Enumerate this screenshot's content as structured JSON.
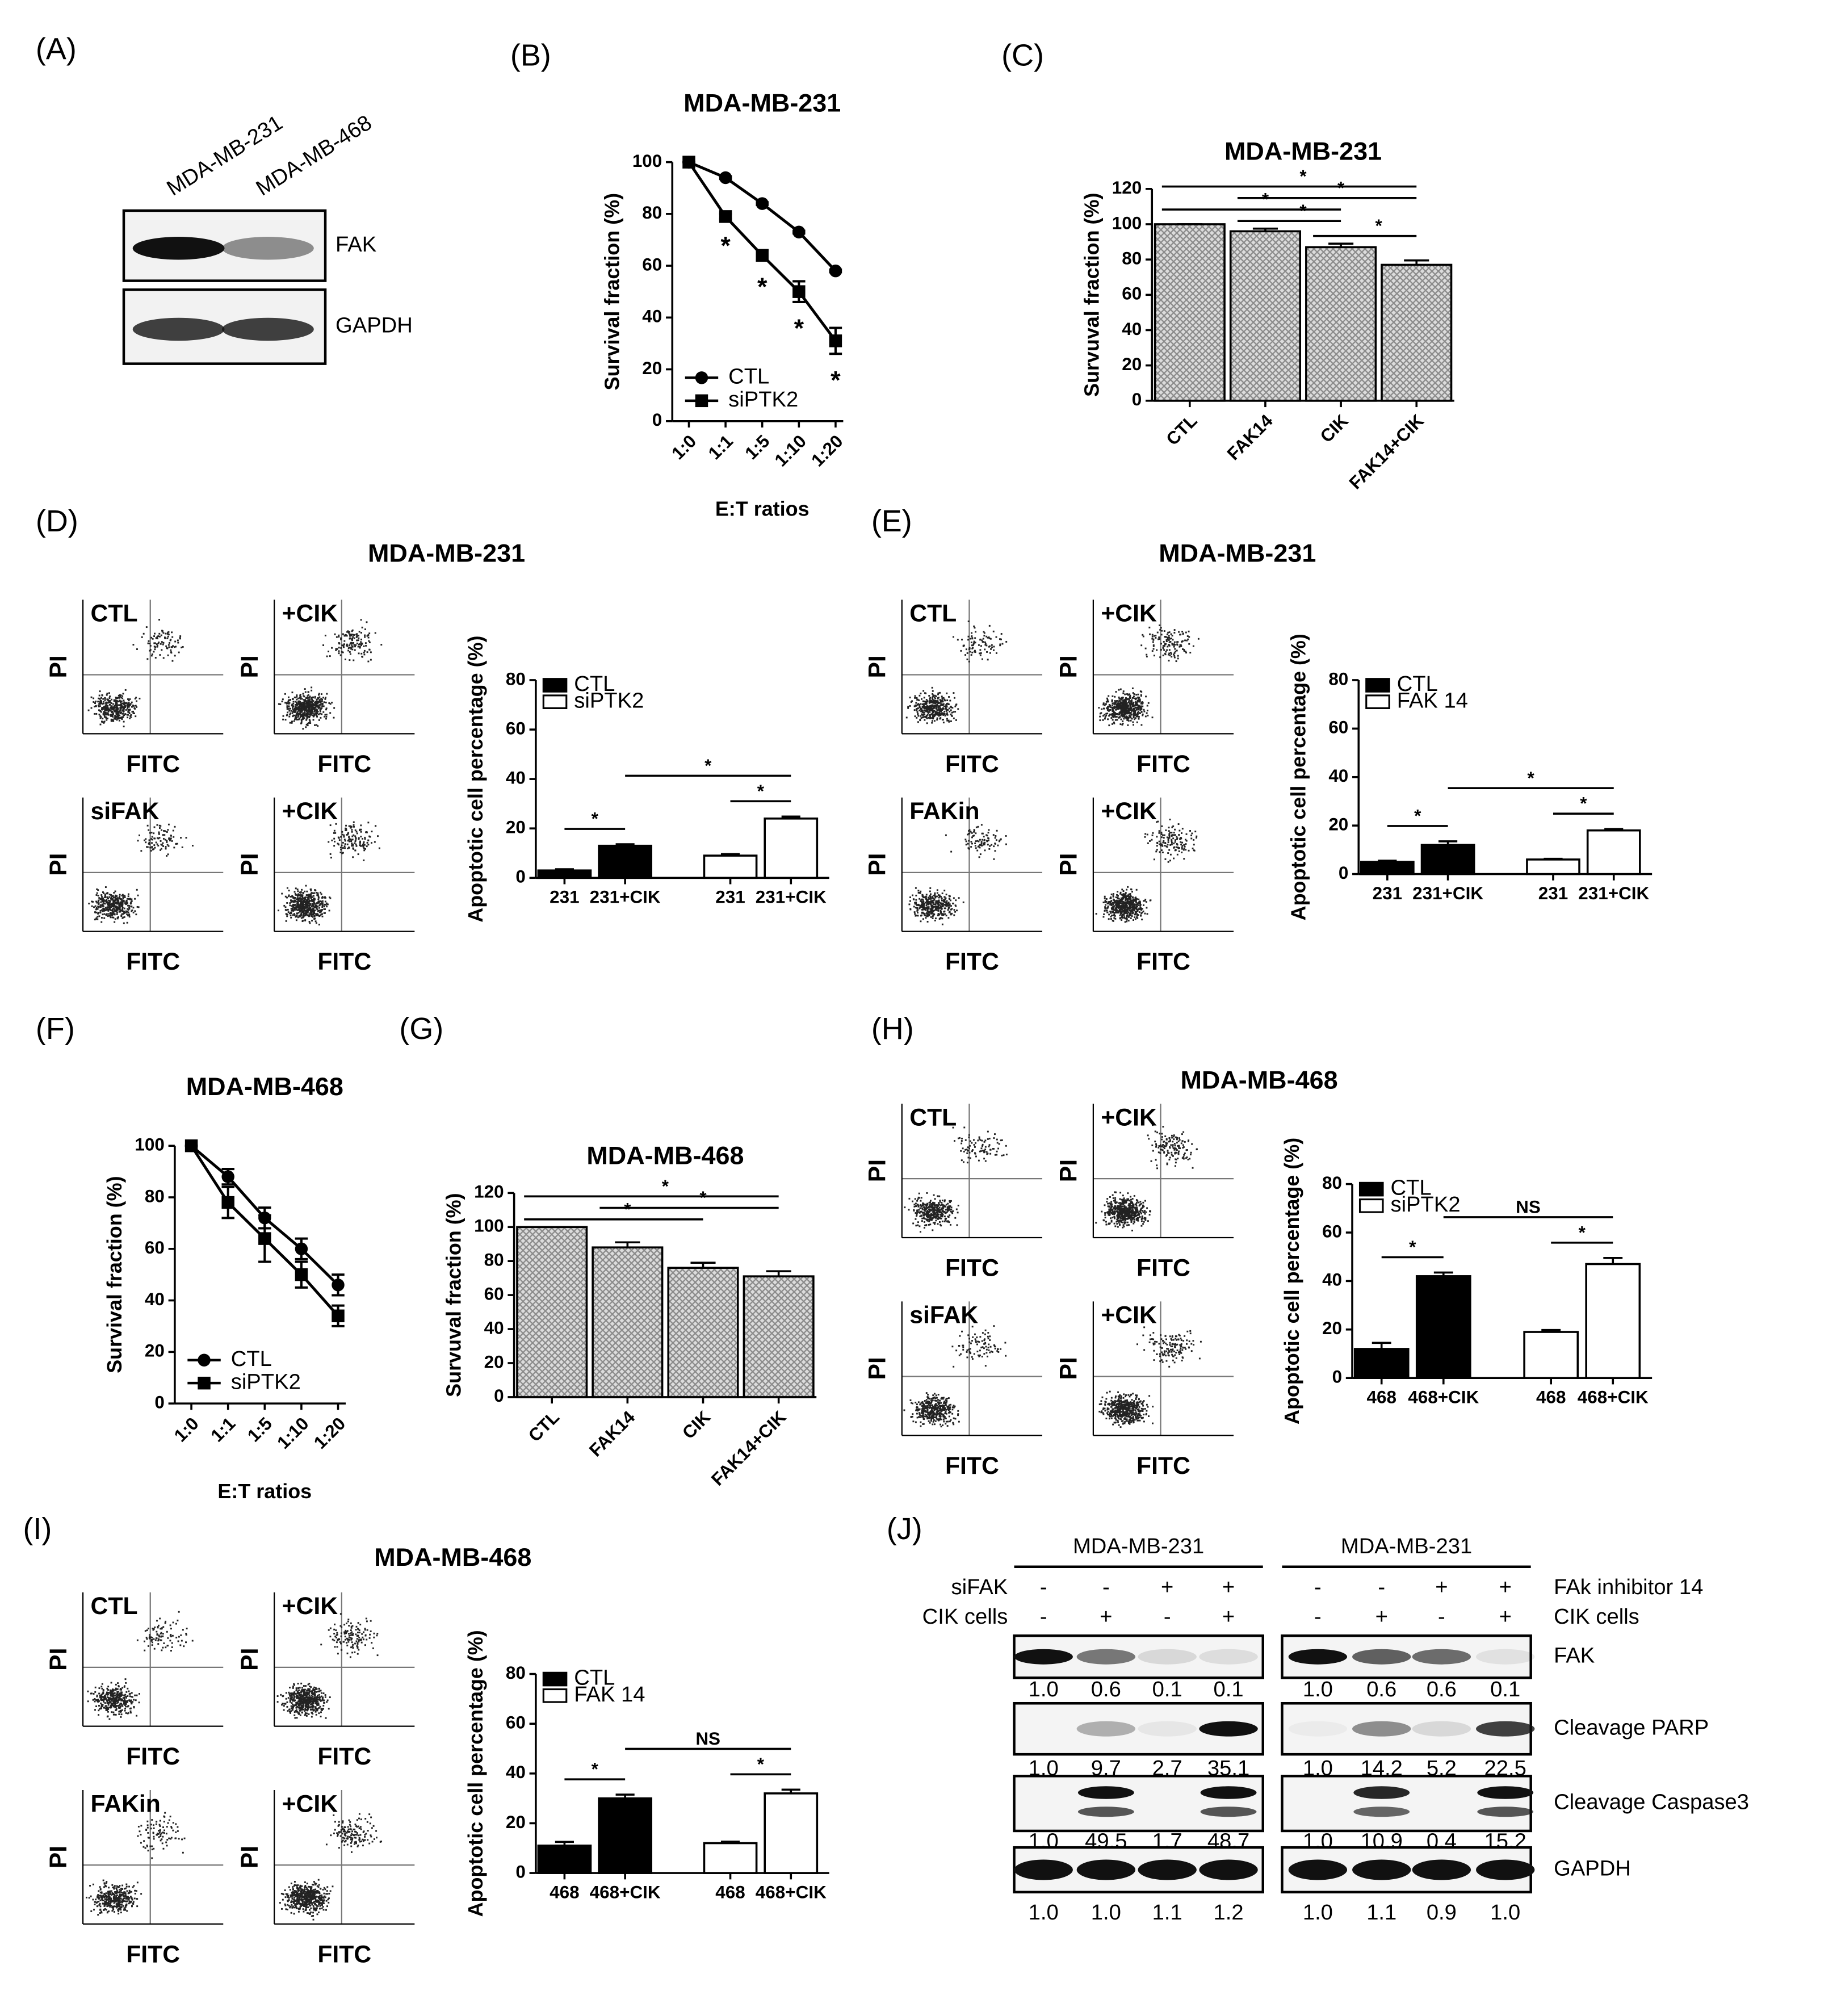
{
  "panel_labels": [
    "(A)",
    "(B)",
    "(C)",
    "(D)",
    "(E)",
    "(F)",
    "(G)",
    "(H)",
    "(I)",
    "(J)"
  ],
  "blot_a": {
    "lanes": [
      "MDA-MB-231",
      "MDA-MB-468"
    ],
    "bands": [
      "FAK",
      "GAPDH"
    ]
  },
  "chart_data": [
    {
      "type": "line",
      "title": "MDA-MB-231",
      "x_label": "E:T ratios",
      "y_label": "Survival fraction (%)",
      "categories": [
        "1:0",
        "1:1",
        "1:5",
        "1:10",
        "1:20"
      ],
      "series": [
        {
          "name": "CTL",
          "color": "#000000",
          "marker": "circle",
          "values": [
            100,
            94,
            84,
            73,
            58
          ],
          "errors": [
            0,
            0.5,
            0.5,
            0.5,
            0.5
          ]
        },
        {
          "name": "siPTK2",
          "color": "#000000",
          "marker": "square",
          "values": [
            100,
            79,
            64,
            50,
            31
          ],
          "errors": [
            0,
            1,
            2,
            4,
            5
          ],
          "point_labels": [
            null,
            "*",
            "*",
            "*",
            "*"
          ]
        }
      ],
      "ylim": [
        0,
        100
      ],
      "yticks": [
        0,
        20,
        40,
        60,
        80,
        100
      ],
      "legend": "lower left"
    },
    {
      "type": "bar",
      "title": "MDA-MB-231",
      "y_label": "Survuval fraction (%)",
      "categories": [
        "CTL",
        "FAK14",
        "CIK",
        "FAK14+CIK"
      ],
      "series": [
        {
          "color": "#8a8a8a",
          "hatch": true,
          "values": [
            100,
            96,
            87,
            77
          ],
          "errors": [
            0,
            1.5,
            2,
            2.5
          ]
        }
      ],
      "ylim": [
        0,
        120
      ],
      "yticks": [
        0,
        20,
        40,
        60,
        80,
        100,
        120
      ],
      "significance": [
        {
          "between": [
            0,
            2
          ],
          "label": "*"
        },
        {
          "between": [
            1,
            2
          ],
          "label": "*"
        },
        {
          "between": [
            0,
            3
          ],
          "label": "*"
        },
        {
          "between": [
            1,
            3
          ],
          "label": "*"
        },
        {
          "between": [
            2,
            3
          ],
          "label": "*"
        }
      ]
    },
    {
      "type": "bar",
      "y_label": "Apoptotic cell percentage (%)",
      "categories": [
        "231",
        "231+CIK",
        "231",
        "231+CIK"
      ],
      "series": [
        {
          "name": "CTL",
          "color": "#000000",
          "values": [
            3,
            13,
            null,
            null
          ],
          "errors": [
            0.5,
            0.6,
            null,
            null
          ]
        },
        {
          "name": "siPTK2",
          "color": "#ffffff",
          "values": [
            null,
            null,
            9,
            24
          ],
          "errors": [
            null,
            null,
            0.6,
            0.8
          ]
        }
      ],
      "ylim": [
        0,
        80
      ],
      "yticks": [
        0,
        20,
        40,
        60,
        80
      ],
      "legend": "upper left",
      "significance": [
        {
          "between": [
            0,
            1
          ],
          "label": "*"
        },
        {
          "between": [
            2,
            3
          ],
          "label": "*"
        },
        {
          "between": [
            1,
            3
          ],
          "label": "*"
        }
      ]
    },
    {
      "type": "bar",
      "y_label": "Apoptotic cell percentage (%)",
      "categories": [
        "231",
        "231+CIK",
        "231",
        "231+CIK"
      ],
      "series": [
        {
          "name": "CTL",
          "color": "#000000",
          "values": [
            5,
            12,
            null,
            null
          ],
          "errors": [
            0.5,
            1.5,
            null,
            null
          ]
        },
        {
          "name": "FAK 14",
          "color": "#ffffff",
          "values": [
            null,
            null,
            6,
            18
          ],
          "errors": [
            null,
            null,
            0.3,
            0.6
          ]
        }
      ],
      "ylim": [
        0,
        80
      ],
      "yticks": [
        0,
        20,
        40,
        60,
        80
      ],
      "legend": "upper left",
      "significance": [
        {
          "between": [
            0,
            1
          ],
          "label": "*"
        },
        {
          "between": [
            2,
            3
          ],
          "label": "*"
        },
        {
          "between": [
            1,
            3
          ],
          "label": "*"
        }
      ]
    },
    {
      "type": "line",
      "title": "MDA-MB-468",
      "x_label": "E:T ratios",
      "y_label": "Survival fraction (%)",
      "categories": [
        "1:0",
        "1:1",
        "1:5",
        "1:10",
        "1:20"
      ],
      "series": [
        {
          "name": "CTL",
          "color": "#000000",
          "marker": "circle",
          "values": [
            100,
            88,
            72,
            60,
            46
          ],
          "errors": [
            0,
            3,
            4,
            4,
            4
          ]
        },
        {
          "name": "siPTK2",
          "color": "#000000",
          "marker": "square",
          "values": [
            100,
            78,
            64,
            50,
            34
          ],
          "errors": [
            0,
            6,
            9,
            5,
            4
          ]
        }
      ],
      "ylim": [
        0,
        100
      ],
      "yticks": [
        0,
        20,
        40,
        60,
        80,
        100
      ],
      "legend": "lower left"
    },
    {
      "type": "bar",
      "title": "MDA-MB-468",
      "y_label": "Survuval fraction (%)",
      "categories": [
        "CTL",
        "FAK14",
        "CIK",
        "FAK14+CIK"
      ],
      "series": [
        {
          "color": "#8a8a8a",
          "hatch": true,
          "values": [
            100,
            88,
            76,
            71
          ],
          "errors": [
            0,
            3,
            3,
            3
          ]
        }
      ],
      "ylim": [
        0,
        120
      ],
      "yticks": [
        0,
        20,
        40,
        60,
        80,
        100,
        120
      ],
      "significance": [
        {
          "between": [
            0,
            2
          ],
          "label": "*"
        },
        {
          "between": [
            0,
            3
          ],
          "label": "*"
        },
        {
          "between": [
            1,
            3
          ],
          "label": "*"
        }
      ]
    },
    {
      "type": "bar",
      "y_label": "Apoptotic cell percentage (%)",
      "categories": [
        "468",
        "468+CIK",
        "468",
        "468+CIK"
      ],
      "series": [
        {
          "name": "CTL",
          "color": "#000000",
          "values": [
            12,
            42,
            null,
            null
          ],
          "errors": [
            2.5,
            1.5,
            null,
            null
          ]
        },
        {
          "name": "siPTK2",
          "color": "#ffffff",
          "values": [
            null,
            null,
            19,
            47
          ],
          "errors": [
            null,
            null,
            0.8,
            2.5
          ]
        }
      ],
      "ylim": [
        0,
        80
      ],
      "yticks": [
        0,
        20,
        40,
        60,
        80
      ],
      "legend": "upper left",
      "significance": [
        {
          "between": [
            0,
            1
          ],
          "label": "*"
        },
        {
          "between": [
            2,
            3
          ],
          "label": "*"
        },
        {
          "between": [
            1,
            3
          ],
          "label": "NS"
        }
      ]
    },
    {
      "type": "bar",
      "y_label": "Apoptotic cell percentage (%)",
      "categories": [
        "468",
        "468+CIK",
        "468",
        "468+CIK"
      ],
      "series": [
        {
          "name": "CTL",
          "color": "#000000",
          "values": [
            11,
            30,
            null,
            null
          ],
          "errors": [
            1.5,
            1.5,
            null,
            null
          ]
        },
        {
          "name": "FAK 14",
          "color": "#ffffff",
          "values": [
            null,
            null,
            12,
            32
          ],
          "errors": [
            null,
            null,
            0.6,
            1.5
          ]
        }
      ],
      "ylim": [
        0,
        80
      ],
      "yticks": [
        0,
        20,
        40,
        60,
        80
      ],
      "legend": "upper left",
      "significance": [
        {
          "between": [
            0,
            1
          ],
          "label": "*"
        },
        {
          "between": [
            2,
            3
          ],
          "label": "*"
        },
        {
          "between": [
            1,
            3
          ],
          "label": "NS"
        }
      ]
    }
  ],
  "flow_panels": [
    {
      "title": "MDA-MB-231",
      "plots": [
        "CTL",
        "+CIK",
        "siFAK",
        "+CIK"
      ],
      "y_label": "PI",
      "x_label": "FITC"
    },
    {
      "title": "MDA-MB-231",
      "plots": [
        "CTL",
        "+CIK",
        "FAKin",
        "+CIK"
      ],
      "y_label": "PI",
      "x_label": "FITC"
    },
    {
      "title": "MDA-MB-468",
      "plots": [
        "CTL",
        "+CIK",
        "siFAK",
        "+CIK"
      ],
      "y_label": "PI",
      "x_label": "FITC"
    },
    {
      "title": "MDA-MB-468",
      "plots": [
        "CTL",
        "+CIK",
        "FAKin",
        "+CIK"
      ],
      "y_label": "PI",
      "x_label": "FITC"
    }
  ],
  "blot_j": {
    "band_names": [
      "FAK",
      "Cleavage PARP",
      "Cleavage Caspase3",
      "GAPDH"
    ],
    "panels": [
      {
        "title": "MDA-MB-231",
        "conditions": [
          {
            "name": "siFAK",
            "signs": [
              "-",
              "-",
              "+",
              "+"
            ]
          },
          {
            "name": "CIK cells",
            "signs": [
              "-",
              "+",
              "-",
              "+"
            ]
          }
        ],
        "quant": [
          [
            "1.0",
            "0.6",
            "0.1",
            "0.1"
          ],
          [
            "1.0",
            "9.7",
            "2.7",
            "35.1"
          ],
          [
            "1.0",
            "49.5",
            "1.7",
            "48.7"
          ],
          [
            "1.0",
            "1.0",
            "1.1",
            "1.2"
          ]
        ]
      },
      {
        "title": "MDA-MB-231",
        "conditions": [
          {
            "name": "FAk inhibitor 14",
            "signs": [
              "-",
              "-",
              "+",
              "+"
            ]
          },
          {
            "name": "CIK cells",
            "signs": [
              "-",
              "+",
              "-",
              "+"
            ]
          }
        ],
        "quant": [
          [
            "1.0",
            "0.6",
            "0.6",
            "0.1"
          ],
          [
            "1.0",
            "14.2",
            "5.2",
            "22.5"
          ],
          [
            "1.0",
            "10.9",
            "0.4",
            "15.2"
          ],
          [
            "1.0",
            "1.1",
            "0.9",
            "1.0"
          ]
        ]
      }
    ]
  }
}
